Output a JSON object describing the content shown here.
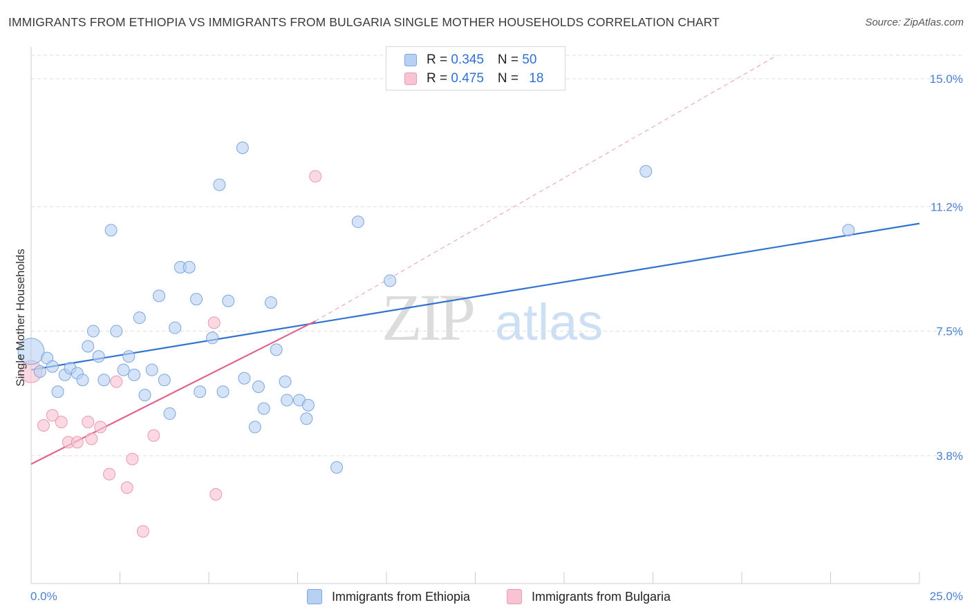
{
  "header": {
    "title": "IMMIGRANTS FROM ETHIOPIA VS IMMIGRANTS FROM BULGARIA SINGLE MOTHER HOUSEHOLDS CORRELATION CHART",
    "source": "Source: ZipAtlas.com"
  },
  "legend": {
    "ethiopia": {
      "r_label": "R = ",
      "r_value": "0.345",
      "n_label": "N = ",
      "n_value": "50"
    },
    "bulgaria": {
      "r_label": "R = ",
      "r_value": "0.475",
      "n_label": "N = ",
      "n_value": "18"
    }
  },
  "watermark": {
    "zip": "ZIP",
    "atlas": "atlas"
  },
  "colors": {
    "ethiopia_fill": "#b8d1f3",
    "ethiopia_stroke": "#7aa6e0",
    "ethiopia_line": "#2f72d0",
    "bulgaria_fill": "#f8c4d3",
    "bulgaria_stroke": "#ec98b2",
    "bulgaria_line": "#e0648c",
    "tick_text": "#4a7fd0"
  },
  "chart_data": {
    "type": "scatter",
    "title": "IMMIGRANTS FROM ETHIOPIA VS IMMIGRANTS FROM BULGARIA SINGLE MOTHER HOUSEHOLDS CORRELATION CHART",
    "xlabel": "",
    "ylabel": "Single Mother Households",
    "xlim": [
      0,
      25
    ],
    "ylim": [
      0,
      15.7
    ],
    "x_tick_labels": [
      "0.0%",
      "25.0%"
    ],
    "y_ticks": [
      3.8,
      7.5,
      11.2,
      15.0
    ],
    "y_tick_labels": [
      "3.8%",
      "7.5%",
      "11.2%",
      "15.0%"
    ],
    "grid": true,
    "legend_position": "top-center",
    "series": [
      {
        "name": "Immigrants from Ethiopia",
        "points": [
          [
            0.0,
            6.9
          ],
          [
            0.25,
            6.3
          ],
          [
            0.45,
            6.7
          ],
          [
            0.6,
            6.45
          ],
          [
            0.75,
            5.7
          ],
          [
            0.95,
            6.2
          ],
          [
            1.1,
            6.4
          ],
          [
            1.3,
            6.25
          ],
          [
            1.45,
            6.05
          ],
          [
            1.6,
            7.05
          ],
          [
            1.75,
            7.5
          ],
          [
            1.9,
            6.75
          ],
          [
            2.05,
            6.05
          ],
          [
            2.25,
            10.5
          ],
          [
            2.4,
            7.5
          ],
          [
            2.6,
            6.35
          ],
          [
            2.75,
            6.75
          ],
          [
            2.9,
            6.2
          ],
          [
            3.05,
            7.9
          ],
          [
            3.2,
            5.6
          ],
          [
            3.4,
            6.35
          ],
          [
            3.6,
            8.55
          ],
          [
            3.75,
            6.05
          ],
          [
            3.9,
            5.05
          ],
          [
            4.05,
            7.6
          ],
          [
            4.2,
            9.4
          ],
          [
            4.45,
            9.4
          ],
          [
            4.65,
            8.45
          ],
          [
            4.75,
            5.7
          ],
          [
            5.1,
            7.3
          ],
          [
            5.3,
            11.85
          ],
          [
            5.4,
            5.7
          ],
          [
            5.55,
            8.4
          ],
          [
            5.95,
            12.95
          ],
          [
            6.0,
            6.1
          ],
          [
            6.3,
            4.65
          ],
          [
            6.4,
            5.85
          ],
          [
            6.55,
            5.2
          ],
          [
            6.75,
            8.35
          ],
          [
            6.9,
            6.95
          ],
          [
            7.15,
            6.0
          ],
          [
            7.2,
            5.45
          ],
          [
            7.55,
            5.45
          ],
          [
            7.75,
            4.9
          ],
          [
            7.8,
            5.3
          ],
          [
            8.6,
            3.45
          ],
          [
            9.2,
            10.75
          ],
          [
            10.1,
            9.0
          ],
          [
            17.3,
            12.25
          ],
          [
            23.0,
            10.5
          ]
        ],
        "fit": {
          "x": [
            0,
            25
          ],
          "y": [
            6.35,
            10.7
          ]
        }
      },
      {
        "name": "Immigrants from Bulgaria",
        "points": [
          [
            0.0,
            6.3
          ],
          [
            0.35,
            4.7
          ],
          [
            0.6,
            5.0
          ],
          [
            0.85,
            4.8
          ],
          [
            1.05,
            4.2
          ],
          [
            1.3,
            4.2
          ],
          [
            1.6,
            4.8
          ],
          [
            1.7,
            4.3
          ],
          [
            1.95,
            4.65
          ],
          [
            2.2,
            3.25
          ],
          [
            2.4,
            6.0
          ],
          [
            2.7,
            2.85
          ],
          [
            2.85,
            3.7
          ],
          [
            3.15,
            1.55
          ],
          [
            3.45,
            4.4
          ],
          [
            5.2,
            2.65
          ],
          [
            5.15,
            7.75
          ],
          [
            8.0,
            12.1
          ]
        ],
        "fit": {
          "x": [
            0,
            8.0
          ],
          "y": [
            3.55,
            7.8
          ]
        },
        "fit_extension": {
          "x": [
            8.0,
            21.0
          ],
          "y": [
            7.8,
            15.7
          ]
        }
      }
    ]
  },
  "bottom_legend": {
    "ethiopia_label": "Immigrants from Ethiopia",
    "bulgaria_label": "Immigrants from Bulgaria"
  }
}
